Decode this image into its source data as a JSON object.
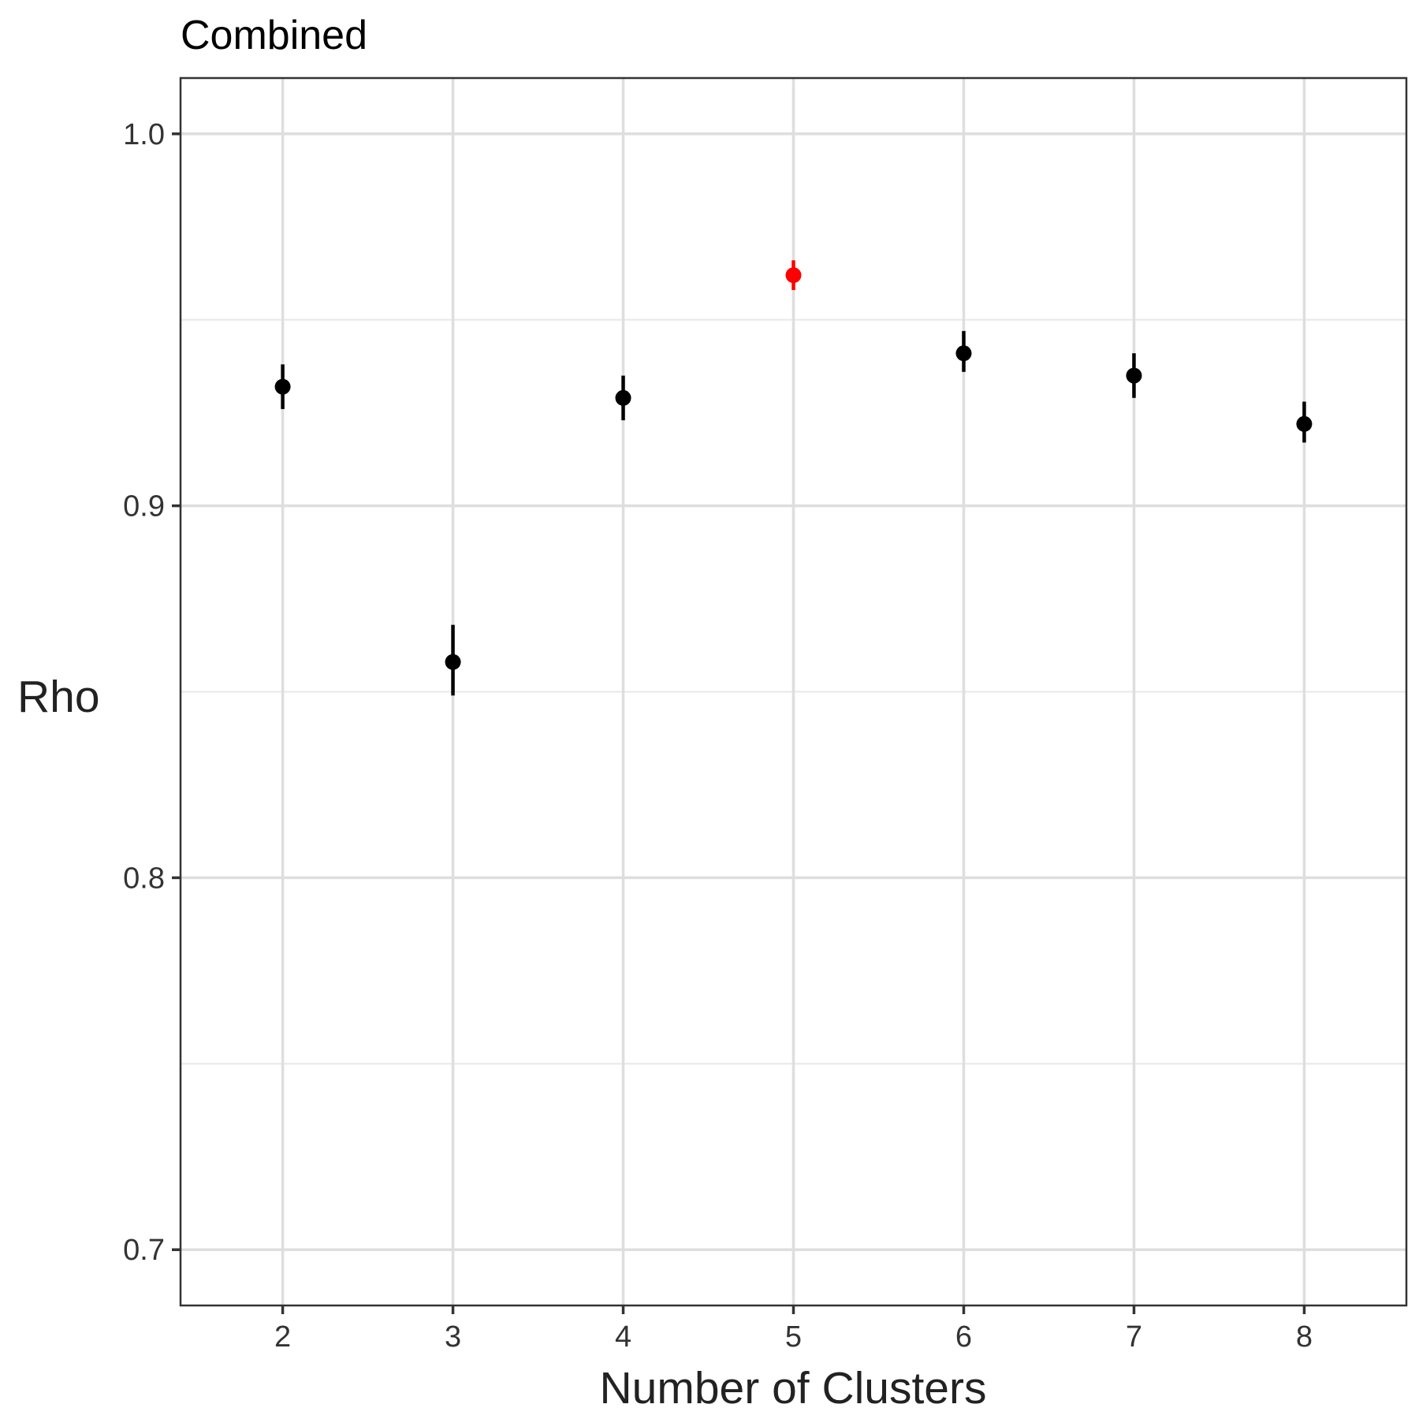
{
  "chart_data": {
    "type": "scatter",
    "title": "Combined",
    "xlabel": "Number of Clusters",
    "ylabel": "Rho",
    "xlim": [
      1.4,
      8.6
    ],
    "ylim": [
      0.685,
      1.015
    ],
    "x_ticks": [
      "2",
      "3",
      "4",
      "5",
      "6",
      "7",
      "8"
    ],
    "y_ticks": [
      "0.7",
      "0.8",
      "0.9",
      "1.0"
    ],
    "y_minor_breaks": [
      0.75,
      0.85,
      0.95
    ],
    "grid": true,
    "legend": "none",
    "highlight_color": "#ff0000",
    "point_color": "#000000",
    "points": [
      {
        "x": 2,
        "y": 0.932,
        "lower": 0.926,
        "upper": 0.938,
        "highlight": false
      },
      {
        "x": 3,
        "y": 0.858,
        "lower": 0.849,
        "upper": 0.868,
        "highlight": false
      },
      {
        "x": 4,
        "y": 0.929,
        "lower": 0.923,
        "upper": 0.935,
        "highlight": false
      },
      {
        "x": 5,
        "y": 0.962,
        "lower": 0.958,
        "upper": 0.966,
        "highlight": true
      },
      {
        "x": 6,
        "y": 0.941,
        "lower": 0.936,
        "upper": 0.947,
        "highlight": false
      },
      {
        "x": 7,
        "y": 0.935,
        "lower": 0.929,
        "upper": 0.941,
        "highlight": false
      },
      {
        "x": 8,
        "y": 0.922,
        "lower": 0.917,
        "upper": 0.928,
        "highlight": false
      }
    ]
  }
}
